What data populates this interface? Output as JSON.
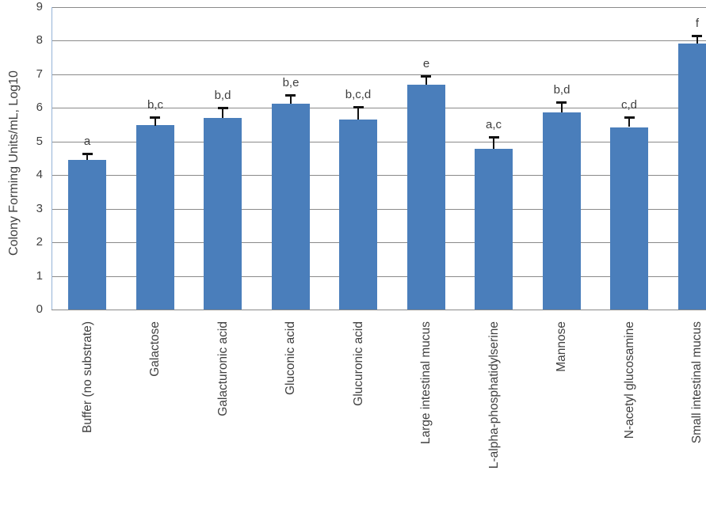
{
  "chart_data": {
    "type": "bar",
    "title": "",
    "xlabel": "",
    "ylabel": "Colony Forming Units/mL, Log10",
    "ylim": [
      0,
      9
    ],
    "ytick_step": 1,
    "ytick_labels": [
      "0",
      "1",
      "2",
      "3",
      "4",
      "5",
      "6",
      "7",
      "8",
      "9"
    ],
    "grid": true,
    "legend": "none",
    "categories": [
      "Buffer (no substrate)",
      "Galactose",
      "Galacturonic acid",
      "Gluconic acid",
      "Glucuronic acid",
      "Large intestinal mucus",
      "L-alpha-phosphatidylserine",
      "Mannose",
      "N-acetyl glucosamine",
      "Small intestinal mucus"
    ],
    "values": [
      4.45,
      5.48,
      5.7,
      6.12,
      5.65,
      6.68,
      4.78,
      5.87,
      5.43,
      7.92
    ],
    "errors_plus": [
      0.2,
      0.25,
      0.3,
      0.26,
      0.37,
      0.27,
      0.35,
      0.31,
      0.29,
      0.23
    ],
    "annotations": [
      "a",
      "b,c",
      "b,d",
      "b,e",
      "b,c,d",
      "e",
      "a,c",
      "b,d",
      "c,d",
      "f"
    ],
    "colors": {
      "bar": "#4A7EBB",
      "gridline": "#8a8a8a",
      "y_axis_line": "#95B3D7",
      "error_bar": "#111111",
      "text": "#3f3f3f",
      "background": "#ffffff"
    }
  }
}
